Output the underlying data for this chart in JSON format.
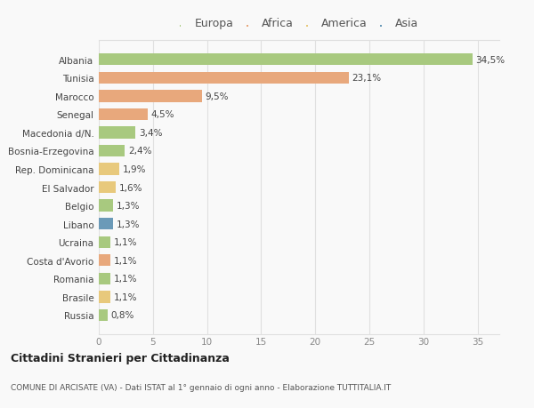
{
  "categories": [
    "Russia",
    "Brasile",
    "Romania",
    "Costa d'Avorio",
    "Ucraina",
    "Libano",
    "Belgio",
    "El Salvador",
    "Rep. Dominicana",
    "Bosnia-Erzegovina",
    "Macedonia d/N.",
    "Senegal",
    "Marocco",
    "Tunisia",
    "Albania"
  ],
  "values": [
    0.8,
    1.1,
    1.1,
    1.1,
    1.1,
    1.3,
    1.3,
    1.6,
    1.9,
    2.4,
    3.4,
    4.5,
    9.5,
    23.1,
    34.5
  ],
  "labels": [
    "0,8%",
    "1,1%",
    "1,1%",
    "1,1%",
    "1,1%",
    "1,3%",
    "1,3%",
    "1,6%",
    "1,9%",
    "2,4%",
    "3,4%",
    "4,5%",
    "9,5%",
    "23,1%",
    "34,5%"
  ],
  "continents": [
    "Europa",
    "America",
    "Europa",
    "Africa",
    "Europa",
    "Asia",
    "Europa",
    "America",
    "America",
    "Europa",
    "Europa",
    "Africa",
    "Africa",
    "Africa",
    "Europa"
  ],
  "colors": {
    "Europa": "#a8c97f",
    "Africa": "#e8a87c",
    "America": "#e8c97c",
    "Asia": "#6b9ab8"
  },
  "xlim": [
    0,
    37
  ],
  "xticks": [
    0,
    5,
    10,
    15,
    20,
    25,
    30,
    35
  ],
  "title": "Cittadini Stranieri per Cittadinanza",
  "subtitle": "COMUNE DI ARCISATE (VA) - Dati ISTAT al 1° gennaio di ogni anno - Elaborazione TUTTITALIA.IT",
  "bg_color": "#f9f9f9",
  "grid_color": "#e0e0e0",
  "legend_order": [
    "Europa",
    "Africa",
    "America",
    "Asia"
  ]
}
